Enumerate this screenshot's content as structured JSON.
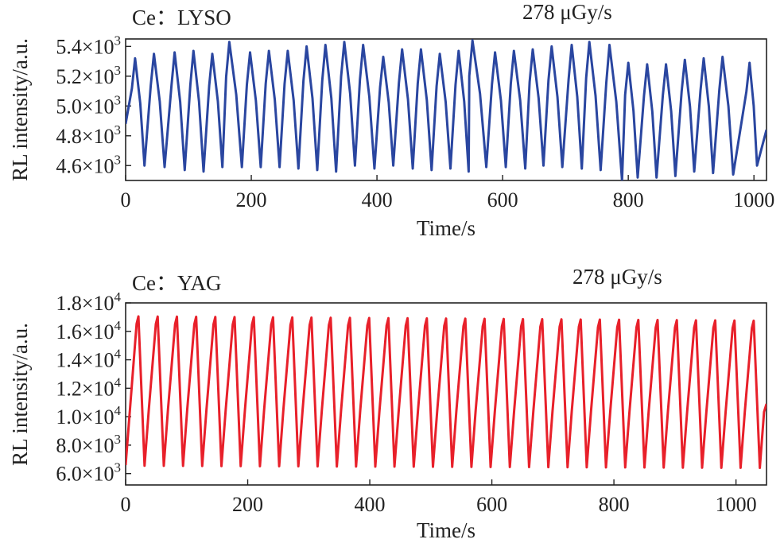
{
  "chart_data": [
    {
      "type": "line",
      "panel_label": "Ce：LYSO",
      "dose_rate_label": "278 μGy/s",
      "xlabel": "Time/s",
      "ylabel": "RL intensity/a.u.",
      "xlim": [
        0,
        1020
      ],
      "ylim": [
        4500,
        5450
      ],
      "x_ticks": [
        0,
        200,
        400,
        600,
        800,
        1000
      ],
      "x_tick_labels": [
        "0",
        "200",
        "400",
        "600",
        "800",
        "1000"
      ],
      "y_ticks": [
        4600,
        4800,
        5000,
        5200,
        5400
      ],
      "y_tick_labels": [
        {
          "mantissa": "4.6×10",
          "exp": "3"
        },
        {
          "mantissa": "4.8×10",
          "exp": "3"
        },
        {
          "mantissa": "5.0×10",
          "exp": "3"
        },
        {
          "mantissa": "5.2×10",
          "exp": "3"
        },
        {
          "mantissa": "5.4×10",
          "exp": "3"
        }
      ],
      "series": [
        {
          "name": "Ce：LYSO",
          "color": "#2a46a0",
          "start": {
            "t": 0,
            "v": 4880
          },
          "end": {
            "t": 1020,
            "v": 4840
          },
          "cycles": [
            {
              "tp": 15,
              "p": 5320,
              "tv": 30,
              "v": 4600
            },
            {
              "tp": 45,
              "p": 5350,
              "tv": 62,
              "v": 4590
            },
            {
              "tp": 78,
              "p": 5360,
              "tv": 94,
              "v": 4570
            },
            {
              "tp": 108,
              "p": 5370,
              "tv": 124,
              "v": 4560
            },
            {
              "tp": 138,
              "p": 5350,
              "tv": 154,
              "v": 4590
            },
            {
              "tp": 165,
              "p": 5430,
              "tv": 185,
              "v": 4590
            },
            {
              "tp": 198,
              "p": 5360,
              "tv": 215,
              "v": 4590
            },
            {
              "tp": 228,
              "p": 5370,
              "tv": 245,
              "v": 4590
            },
            {
              "tp": 258,
              "p": 5370,
              "tv": 275,
              "v": 4580
            },
            {
              "tp": 288,
              "p": 5400,
              "tv": 305,
              "v": 4570
            },
            {
              "tp": 318,
              "p": 5410,
              "tv": 335,
              "v": 4560
            },
            {
              "tp": 348,
              "p": 5430,
              "tv": 365,
              "v": 4600
            },
            {
              "tp": 378,
              "p": 5410,
              "tv": 396,
              "v": 4580
            },
            {
              "tp": 410,
              "p": 5330,
              "tv": 426,
              "v": 4600
            },
            {
              "tp": 440,
              "p": 5380,
              "tv": 457,
              "v": 4580
            },
            {
              "tp": 470,
              "p": 5380,
              "tv": 487,
              "v": 4570
            },
            {
              "tp": 500,
              "p": 5350,
              "tv": 517,
              "v": 4580
            },
            {
              "tp": 530,
              "p": 5370,
              "tv": 546,
              "v": 4560
            },
            {
              "tp": 552,
              "p": 5440,
              "tv": 574,
              "v": 4590
            },
            {
              "tp": 588,
              "p": 5360,
              "tv": 605,
              "v": 4590
            },
            {
              "tp": 618,
              "p": 5370,
              "tv": 636,
              "v": 4580
            },
            {
              "tp": 648,
              "p": 5380,
              "tv": 665,
              "v": 4600
            },
            {
              "tp": 678,
              "p": 5400,
              "tv": 695,
              "v": 4590
            },
            {
              "tp": 710,
              "p": 5410,
              "tv": 726,
              "v": 4580
            },
            {
              "tp": 738,
              "p": 5430,
              "tv": 756,
              "v": 4570
            },
            {
              "tp": 770,
              "p": 5410,
              "tv": 790,
              "v": 4500
            },
            {
              "tp": 800,
              "p": 5290,
              "tv": 815,
              "v": 4520
            },
            {
              "tp": 830,
              "p": 5280,
              "tv": 845,
              "v": 4520
            },
            {
              "tp": 860,
              "p": 5280,
              "tv": 875,
              "v": 4530
            },
            {
              "tp": 890,
              "p": 5310,
              "tv": 905,
              "v": 4560
            },
            {
              "tp": 920,
              "p": 5320,
              "tv": 935,
              "v": 4550
            },
            {
              "tp": 950,
              "p": 5330,
              "tv": 967,
              "v": 4540
            },
            {
              "tp": 993,
              "p": 5290,
              "tv": 1005,
              "v": 4600
            }
          ]
        }
      ]
    },
    {
      "type": "line",
      "panel_label": "Ce：YAG",
      "dose_rate_label": "278 μGy/s",
      "xlabel": "Time/s",
      "ylabel": "RL intensity/a.u.",
      "xlim": [
        0,
        1050
      ],
      "ylim": [
        5200,
        18000
      ],
      "x_ticks": [
        0,
        200,
        400,
        600,
        800,
        1000
      ],
      "x_tick_labels": [
        "0",
        "200",
        "400",
        "600",
        "800",
        "1000"
      ],
      "y_ticks": [
        6000,
        8000,
        10000,
        12000,
        14000,
        16000,
        18000
      ],
      "y_tick_labels": [
        {
          "mantissa": "6.0×10",
          "exp": "3"
        },
        {
          "mantissa": "8.0×10",
          "exp": "3"
        },
        {
          "mantissa": "1.0×10",
          "exp": "4"
        },
        {
          "mantissa": "1.2×10",
          "exp": "4"
        },
        {
          "mantissa": "1.4×10",
          "exp": "4"
        },
        {
          "mantissa": "1.6×10",
          "exp": "4"
        },
        {
          "mantissa": "1.8×10",
          "exp": "4"
        }
      ],
      "series": [
        {
          "name": "Ce：YAG",
          "color": "#e8202a",
          "start": {
            "t": 0,
            "v": 6600
          },
          "period": 31.5,
          "first_peak_t": 21,
          "valley_offset": 10,
          "peak_start": 17050,
          "peak_end": 16750,
          "valley_start": 6550,
          "valley_end": 6400,
          "end": {
            "t": 1050,
            "v": 10900
          }
        }
      ]
    }
  ]
}
